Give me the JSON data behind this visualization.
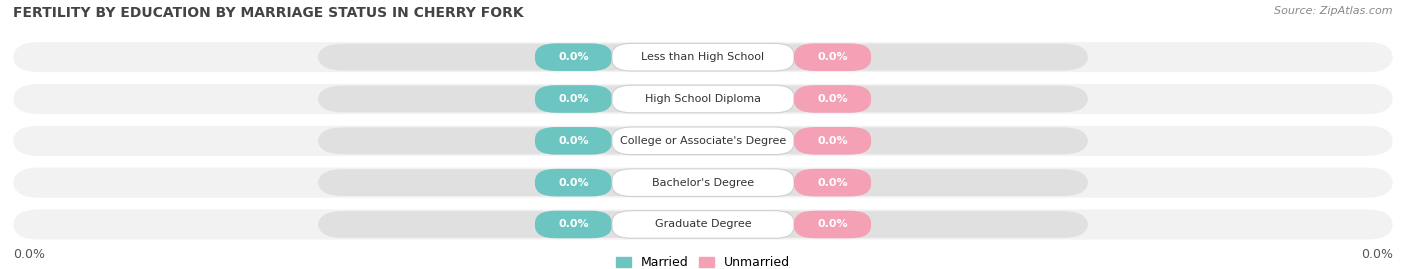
{
  "title": "FERTILITY BY EDUCATION BY MARRIAGE STATUS IN CHERRY FORK",
  "source": "Source: ZipAtlas.com",
  "categories": [
    "Less than High School",
    "High School Diploma",
    "College or Associate's Degree",
    "Bachelor's Degree",
    "Graduate Degree"
  ],
  "married_values": [
    0.0,
    0.0,
    0.0,
    0.0,
    0.0
  ],
  "unmarried_values": [
    0.0,
    0.0,
    0.0,
    0.0,
    0.0
  ],
  "married_color": "#6cc5c1",
  "unmarried_color": "#f4a0b5",
  "bar_bg_color": "#e0e0e0",
  "row_bg_color": "#f2f2f2",
  "title_fontsize": 10,
  "label_fontsize": 8.5,
  "tick_fontsize": 9,
  "source_fontsize": 8,
  "value_label": "0.0%"
}
